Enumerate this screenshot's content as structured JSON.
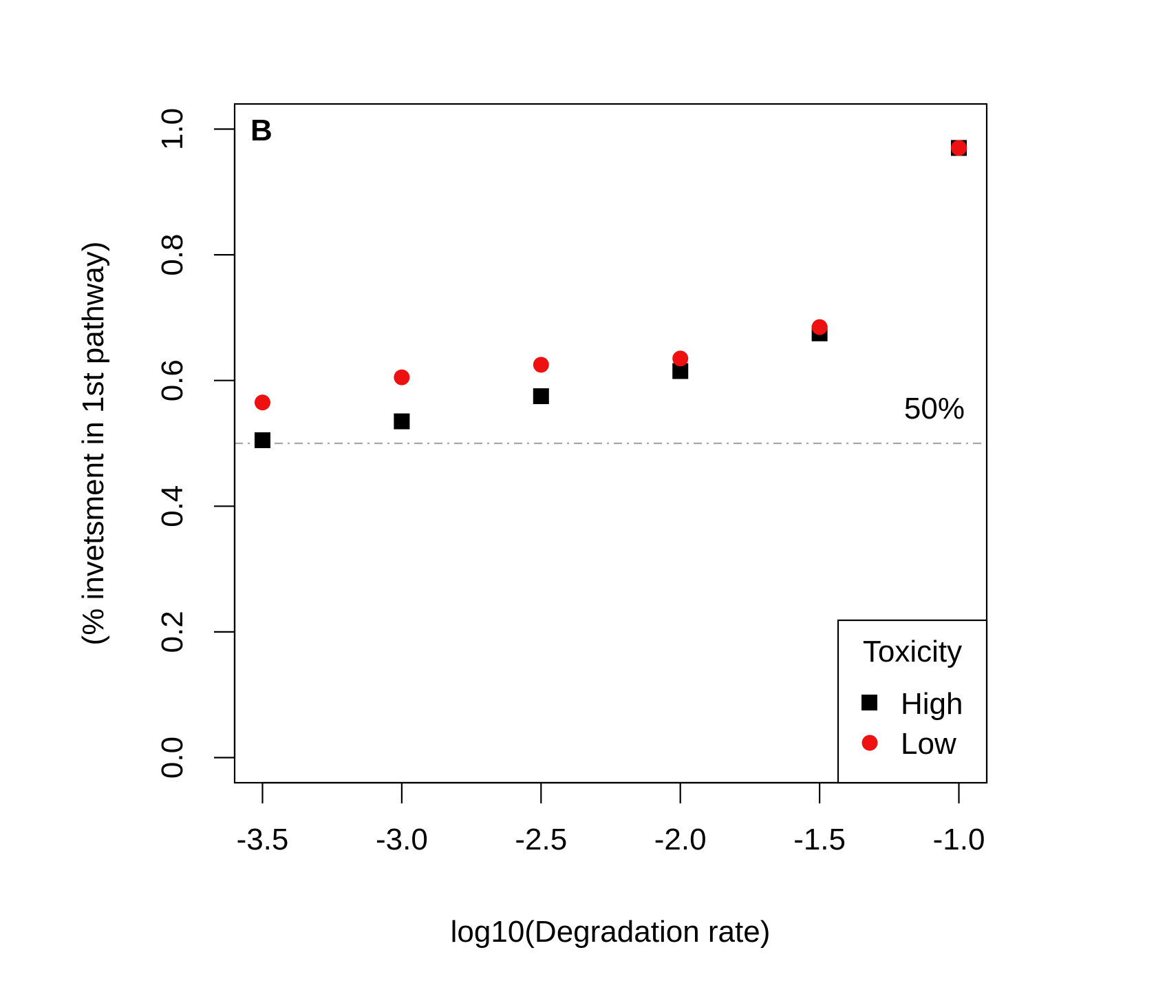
{
  "chart_data": {
    "type": "scatter",
    "panel_label": "B",
    "title": "",
    "xlabel": "log10(Degradation rate)",
    "ylabel": "(% invetsment in 1st pathway)",
    "xlim": [
      -3.6,
      -0.9
    ],
    "ylim": [
      -0.04,
      1.04
    ],
    "x_ticks": [
      -3.5,
      -3.0,
      -2.5,
      -2.0,
      -1.5,
      -1.0
    ],
    "x_tick_labels": [
      "-3.5",
      "-3.0",
      "-2.5",
      "-2.0",
      "-1.5",
      "-1.0"
    ],
    "y_ticks": [
      0.0,
      0.2,
      0.4,
      0.6,
      0.8,
      1.0
    ],
    "y_tick_labels": [
      "0.0",
      "0.2",
      "0.4",
      "0.6",
      "0.8",
      "1.0"
    ],
    "grid": false,
    "reference_line": {
      "y": 0.5,
      "label": "50%",
      "style": "dashdot",
      "color": "#a6a6a6"
    },
    "legend": {
      "title": "Toxicity",
      "position": "bottom-right"
    },
    "series": [
      {
        "name": "High",
        "marker": "square",
        "color": "#000000",
        "x": [
          -3.5,
          -3.0,
          -2.5,
          -2.0,
          -1.5,
          -1.0
        ],
        "y": [
          0.505,
          0.535,
          0.575,
          0.615,
          0.675,
          0.97
        ]
      },
      {
        "name": "Low",
        "marker": "circle",
        "color": "#ee1111",
        "x": [
          -3.5,
          -3.0,
          -2.5,
          -2.0,
          -1.5,
          -1.0
        ],
        "y": [
          0.565,
          0.605,
          0.625,
          0.635,
          0.685,
          0.97
        ]
      }
    ]
  }
}
